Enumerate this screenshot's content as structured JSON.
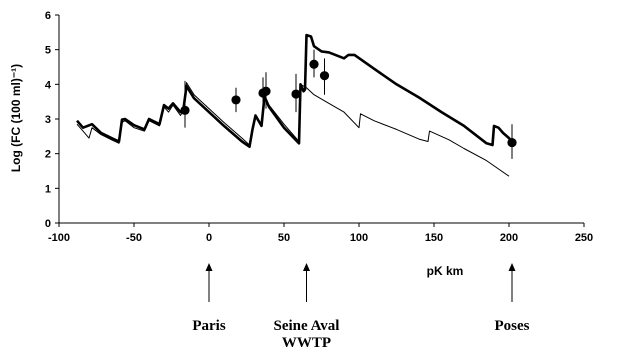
{
  "chart_data": {
    "type": "line",
    "title": "",
    "xlabel": "pK km",
    "ylabel": "Log (FC (100 ml)⁻¹)",
    "xlim": [
      -100,
      250
    ],
    "ylim": [
      0,
      6
    ],
    "x_ticks": [
      -100,
      -50,
      0,
      50,
      100,
      150,
      200,
      250
    ],
    "y_ticks": [
      0,
      1,
      2,
      3,
      4,
      5,
      6
    ],
    "grid": false,
    "series": [
      {
        "style": "thick",
        "color": "#000000",
        "points": [
          [
            -88,
            2.95
          ],
          [
            -84,
            2.75
          ],
          [
            -78,
            2.85
          ],
          [
            -72,
            2.6
          ],
          [
            -65,
            2.45
          ],
          [
            -60,
            2.35
          ],
          [
            -58,
            2.98
          ],
          [
            -56,
            3.0
          ],
          [
            -50,
            2.82
          ],
          [
            -43,
            2.7
          ],
          [
            -40,
            3.0
          ],
          [
            -33,
            2.85
          ],
          [
            -30,
            3.4
          ],
          [
            -27,
            3.3
          ],
          [
            -24,
            3.45
          ],
          [
            -19,
            3.2
          ],
          [
            -17,
            3.3
          ],
          [
            -15,
            3.95
          ],
          [
            -10,
            3.6
          ],
          [
            0,
            3.2
          ],
          [
            10,
            2.8
          ],
          [
            22,
            2.35
          ],
          [
            27,
            2.2
          ],
          [
            29,
            2.7
          ],
          [
            31,
            3.1
          ],
          [
            35,
            2.8
          ],
          [
            37,
            3.65
          ],
          [
            40,
            3.35
          ],
          [
            50,
            2.75
          ],
          [
            60,
            2.3
          ],
          [
            61,
            4.0
          ],
          [
            63,
            3.8
          ],
          [
            64,
            3.85
          ],
          [
            65,
            5.42
          ],
          [
            68,
            5.38
          ],
          [
            70,
            5.1
          ],
          [
            75,
            4.95
          ],
          [
            80,
            4.92
          ],
          [
            90,
            4.75
          ],
          [
            93,
            4.85
          ],
          [
            97,
            4.85
          ],
          [
            110,
            4.45
          ],
          [
            125,
            4.0
          ],
          [
            140,
            3.62
          ],
          [
            155,
            3.2
          ],
          [
            170,
            2.8
          ],
          [
            185,
            2.3
          ],
          [
            189,
            2.25
          ],
          [
            190,
            2.8
          ],
          [
            193,
            2.75
          ],
          [
            196,
            2.6
          ],
          [
            200,
            2.45
          ],
          [
            203,
            2.3
          ]
        ]
      },
      {
        "style": "thin",
        "color": "#000000",
        "points": [
          [
            -88,
            2.85
          ],
          [
            -84,
            2.65
          ],
          [
            -80,
            2.45
          ],
          [
            -78,
            2.75
          ],
          [
            -72,
            2.55
          ],
          [
            -65,
            2.4
          ],
          [
            -60,
            2.3
          ],
          [
            -58,
            2.9
          ],
          [
            -56,
            2.95
          ],
          [
            -50,
            2.75
          ],
          [
            -43,
            2.65
          ],
          [
            -40,
            2.95
          ],
          [
            -33,
            2.8
          ],
          [
            -30,
            3.35
          ],
          [
            -27,
            3.2
          ],
          [
            -24,
            3.4
          ],
          [
            -19,
            3.1
          ],
          [
            -17,
            3.25
          ],
          [
            -15,
            4.05
          ],
          [
            -10,
            3.7
          ],
          [
            0,
            3.3
          ],
          [
            10,
            2.9
          ],
          [
            22,
            2.45
          ],
          [
            27,
            2.25
          ],
          [
            29,
            2.7
          ],
          [
            31,
            3.05
          ],
          [
            35,
            2.8
          ],
          [
            37,
            3.6
          ],
          [
            40,
            3.4
          ],
          [
            50,
            2.85
          ],
          [
            60,
            2.35
          ],
          [
            61,
            4.0
          ],
          [
            65,
            3.9
          ],
          [
            70,
            3.7
          ],
          [
            80,
            3.45
          ],
          [
            90,
            3.2
          ],
          [
            100,
            2.75
          ],
          [
            101,
            3.15
          ],
          [
            110,
            2.95
          ],
          [
            125,
            2.7
          ],
          [
            140,
            2.42
          ],
          [
            146,
            2.35
          ],
          [
            147,
            2.65
          ],
          [
            160,
            2.4
          ],
          [
            170,
            2.15
          ],
          [
            185,
            1.8
          ],
          [
            200,
            1.35
          ]
        ]
      }
    ],
    "observations": {
      "marker": "filled-circle",
      "points": [
        {
          "x": -16,
          "y": 3.25,
          "low": 2.75,
          "high": 4.1
        },
        {
          "x": 18,
          "y": 3.55,
          "low": 3.2,
          "high": 3.9
        },
        {
          "x": 36,
          "y": 3.75,
          "low": 3.3,
          "high": 4.2
        },
        {
          "x": 38,
          "y": 3.8,
          "low": 3.3,
          "high": 4.35
        },
        {
          "x": 58,
          "y": 3.72,
          "low": 3.2,
          "high": 4.3
        },
        {
          "x": 70,
          "y": 4.58,
          "low": 4.2,
          "high": 5.0
        },
        {
          "x": 77,
          "y": 4.25,
          "low": 3.7,
          "high": 4.75
        },
        {
          "x": 202,
          "y": 2.32,
          "low": 1.85,
          "high": 2.85
        }
      ]
    },
    "annotations": [
      {
        "label_lines": [
          "Paris"
        ],
        "x": 0
      },
      {
        "label_lines": [
          "Seine Aval",
          "WWTP"
        ],
        "x": 65
      },
      {
        "label_lines": [
          "Poses"
        ],
        "x": 202
      }
    ]
  }
}
